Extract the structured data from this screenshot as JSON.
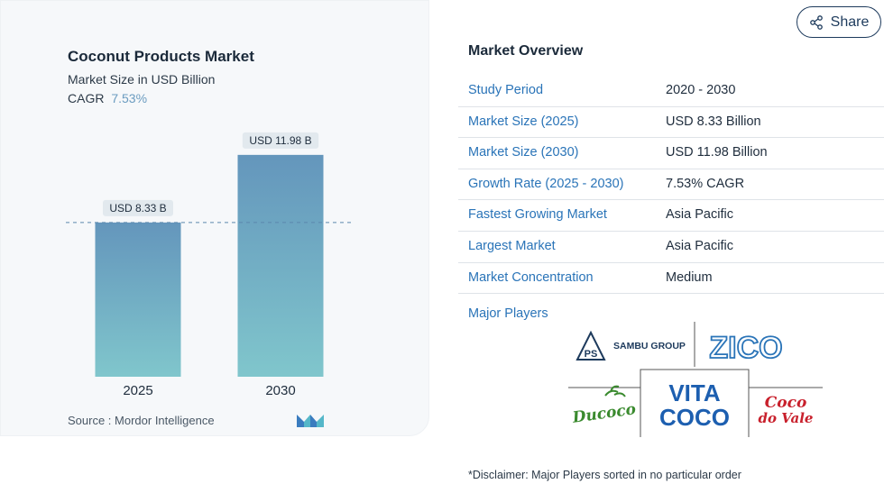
{
  "chart": {
    "title": "Coconut Products Market",
    "subtitle": "Market Size in USD Billion",
    "cagr_label": "CAGR",
    "cagr_value": "7.53%",
    "source": "Source :  Mordor Intelligence",
    "logo": "mordor-intelligence-logo"
  },
  "chart_data": {
    "type": "bar",
    "categories": [
      "2025",
      "2030"
    ],
    "values": [
      8.33,
      11.98
    ],
    "data_labels": [
      "USD 8.33 B",
      "USD 11.98 B"
    ],
    "title": "Coconut Products Market",
    "ylabel": "Market Size in USD Billion",
    "ylim": [
      0,
      12.8
    ],
    "grid": false,
    "reference_line_at": 8.33,
    "bar_color_top": "#6496bc",
    "bar_color_bottom": "#80c6cc"
  },
  "share": {
    "label": "Share",
    "icon": "share-icon"
  },
  "overview": {
    "title": "Market Overview",
    "rows": [
      {
        "label": "Study Period",
        "value": "2020 - 2030"
      },
      {
        "label": "Market Size (2025)",
        "value": "USD 8.33 Billion"
      },
      {
        "label": "Market Size (2030)",
        "value": "USD 11.98 Billion"
      },
      {
        "label": "Growth Rate (2025 - 2030)",
        "value": "7.53% CAGR"
      },
      {
        "label": "Fastest Growing Market",
        "value": "Asia Pacific"
      },
      {
        "label": "Largest Market",
        "value": "Asia Pacific"
      },
      {
        "label": "Market Concentration",
        "value": "Medium"
      }
    ]
  },
  "players": {
    "title": "Major Players",
    "logos": [
      {
        "name": "SAMBU GROUP",
        "mark": "PS"
      },
      {
        "name": "ZICO"
      },
      {
        "name": "Ducoco"
      },
      {
        "name": "VITA COCO",
        "line1": "VITA",
        "line2": "COCO"
      },
      {
        "name": "Coco do Vale",
        "line1": "Coco",
        "line2": "do Vale"
      }
    ]
  },
  "disclaimer": "*Disclaimer: Major Players sorted in no particular order",
  "colors": {
    "accent": "#2a74b8",
    "navy": "#1d3a5c",
    "vita_blue": "#1d5fb0",
    "coco_red": "#c8202c",
    "ducoco_green": "#3a8a2e"
  }
}
